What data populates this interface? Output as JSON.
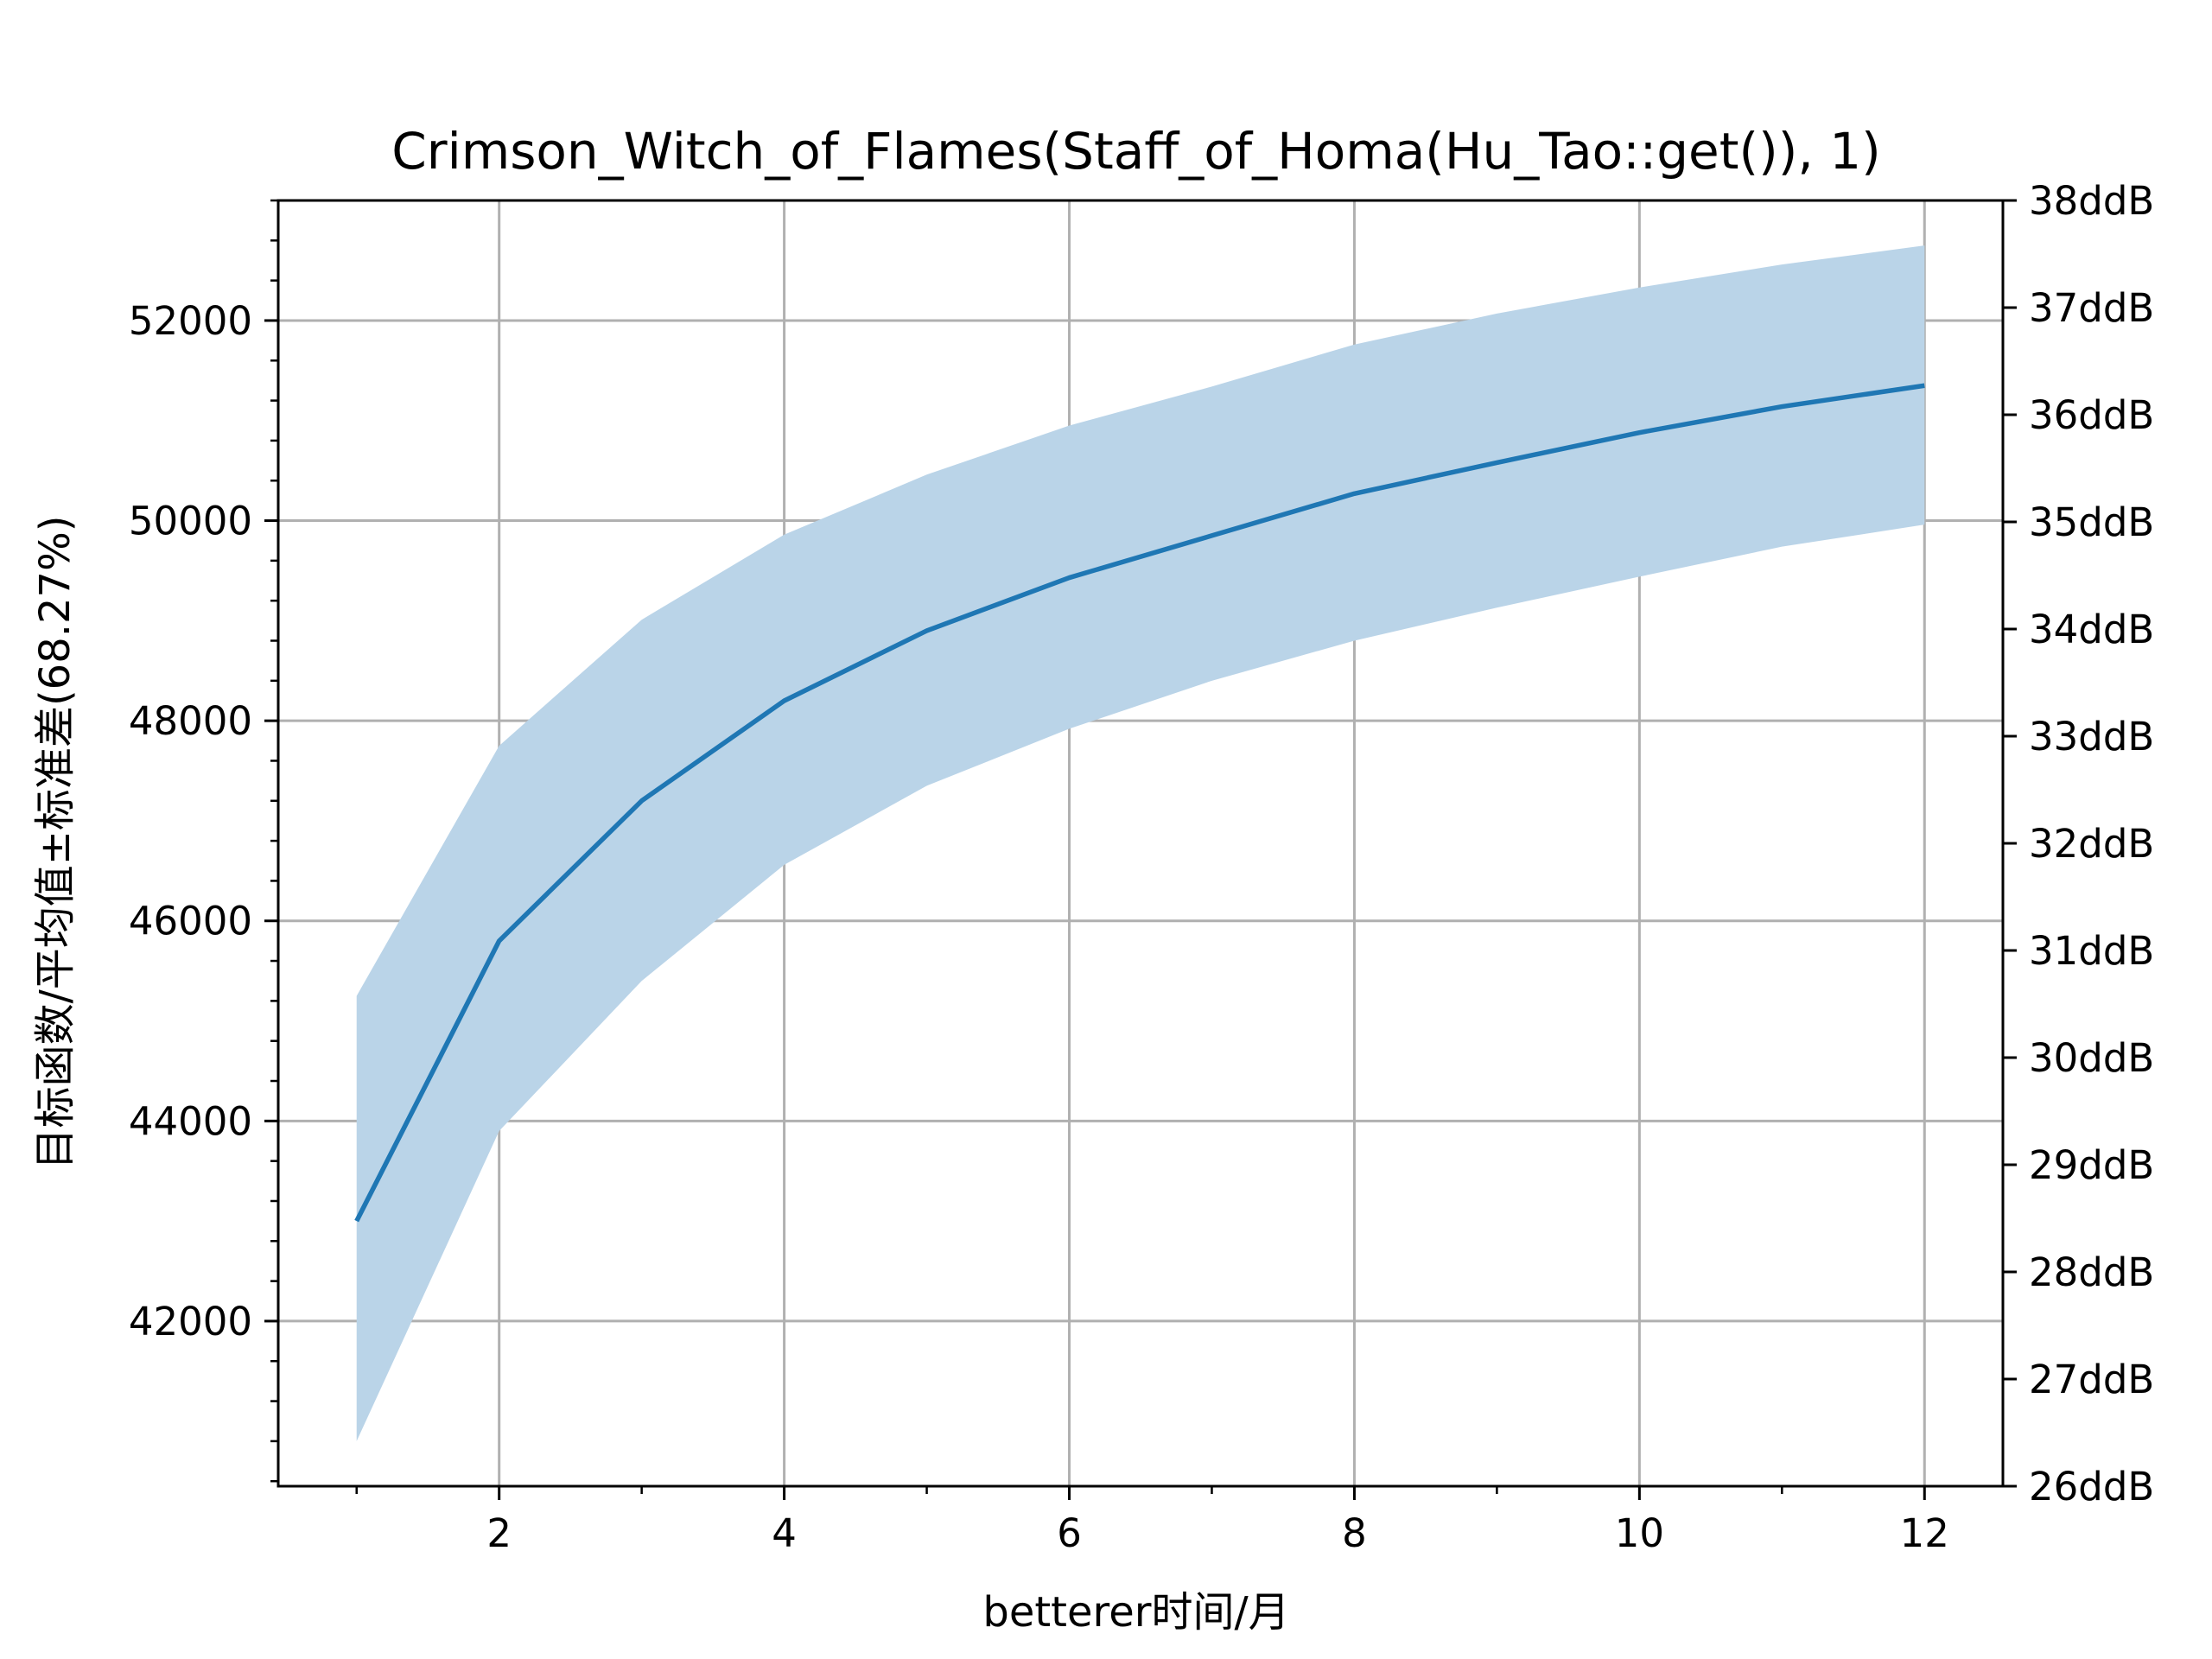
{
  "chart_data": {
    "type": "line",
    "title": "Crimson_Witch_of_Flames(Staff_of_Homa(Hu_Tao::get()), 1)",
    "xlabel": "betterer时间/月",
    "ylabel": "目标函数/平均值±标准差(68.27%)",
    "x": [
      1,
      2,
      3,
      4,
      5,
      6,
      7,
      8,
      9,
      10,
      11,
      12
    ],
    "series": [
      {
        "values": [
          43000,
          45800,
          47200,
          48200,
          48900,
          49430,
          49850,
          50270,
          50580,
          50880,
          51140,
          51350
        ],
        "lower": [
          40800,
          43900,
          45400,
          46560,
          47350,
          47920,
          48400,
          48800,
          49130,
          49440,
          49740,
          49960
        ],
        "upper": [
          45250,
          47750,
          49010,
          49860,
          50460,
          50950,
          51340,
          51760,
          52070,
          52330,
          52560,
          52750
        ],
        "color": "#1f77b4",
        "band_color": "#bad4e8"
      }
    ],
    "xlim": [
      0.45,
      12.55
    ],
    "ylim": [
      40350,
      53200
    ],
    "xticks": [
      2,
      4,
      6,
      8,
      10,
      12
    ],
    "yticks": [
      42000,
      44000,
      46000,
      48000,
      50000,
      52000
    ],
    "xtick_labels": [
      "2",
      "4",
      "6",
      "8",
      "10",
      "12"
    ],
    "ytick_labels": [
      "42000",
      "44000",
      "46000",
      "48000",
      "50000",
      "52000"
    ],
    "y2ticks": [
      26,
      27,
      28,
      29,
      30,
      31,
      32,
      33,
      34,
      35,
      36,
      37,
      38
    ],
    "y2tick_labels": [
      "26ddB",
      "27ddB",
      "28ddB",
      "29ddB",
      "30ddB",
      "31ddB",
      "32ddB",
      "33ddB",
      "34ddB",
      "35ddB",
      "36ddB",
      "37ddB",
      "38ddB"
    ],
    "y2lim": [
      26,
      38
    ],
    "grid": true,
    "grid_color": "#b0b0b0"
  }
}
